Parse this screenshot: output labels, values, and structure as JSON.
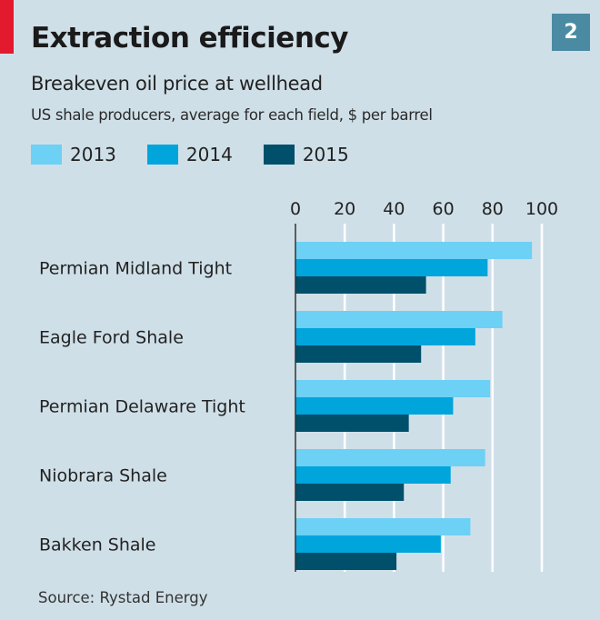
{
  "header": {
    "title": "Extraction efficiency",
    "subtitle": "Breakeven oil price at wellhead",
    "description": "US shale producers, average for each field, $ per barrel",
    "badge": "2",
    "accent_color": "#e3192e"
  },
  "source": "Source: Rystad Energy",
  "chart_data": {
    "type": "bar",
    "orientation": "horizontal",
    "title": "Extraction efficiency",
    "subtitle": "Breakeven oil price at wellhead",
    "xlabel": "$ per barrel",
    "ylabel": "",
    "xlim": [
      0,
      100
    ],
    "xticks": [
      "0",
      "20",
      "40",
      "60",
      "80",
      "100"
    ],
    "grid": true,
    "legend_position": "top-left",
    "categories": [
      "Permian Midland Tight",
      "Eagle Ford Shale",
      "Permian Delaware Tight",
      "Niobrara Shale",
      "Bakken Shale"
    ],
    "series": [
      {
        "name": "2013",
        "color": "#6dd0f5",
        "values": [
          96,
          84,
          79,
          77,
          71
        ]
      },
      {
        "name": "2014",
        "color": "#00a5dc",
        "values": [
          78,
          73,
          64,
          63,
          59
        ]
      },
      {
        "name": "2015",
        "color": "#004f6b",
        "values": [
          53,
          51,
          46,
          44,
          41
        ]
      }
    ]
  }
}
